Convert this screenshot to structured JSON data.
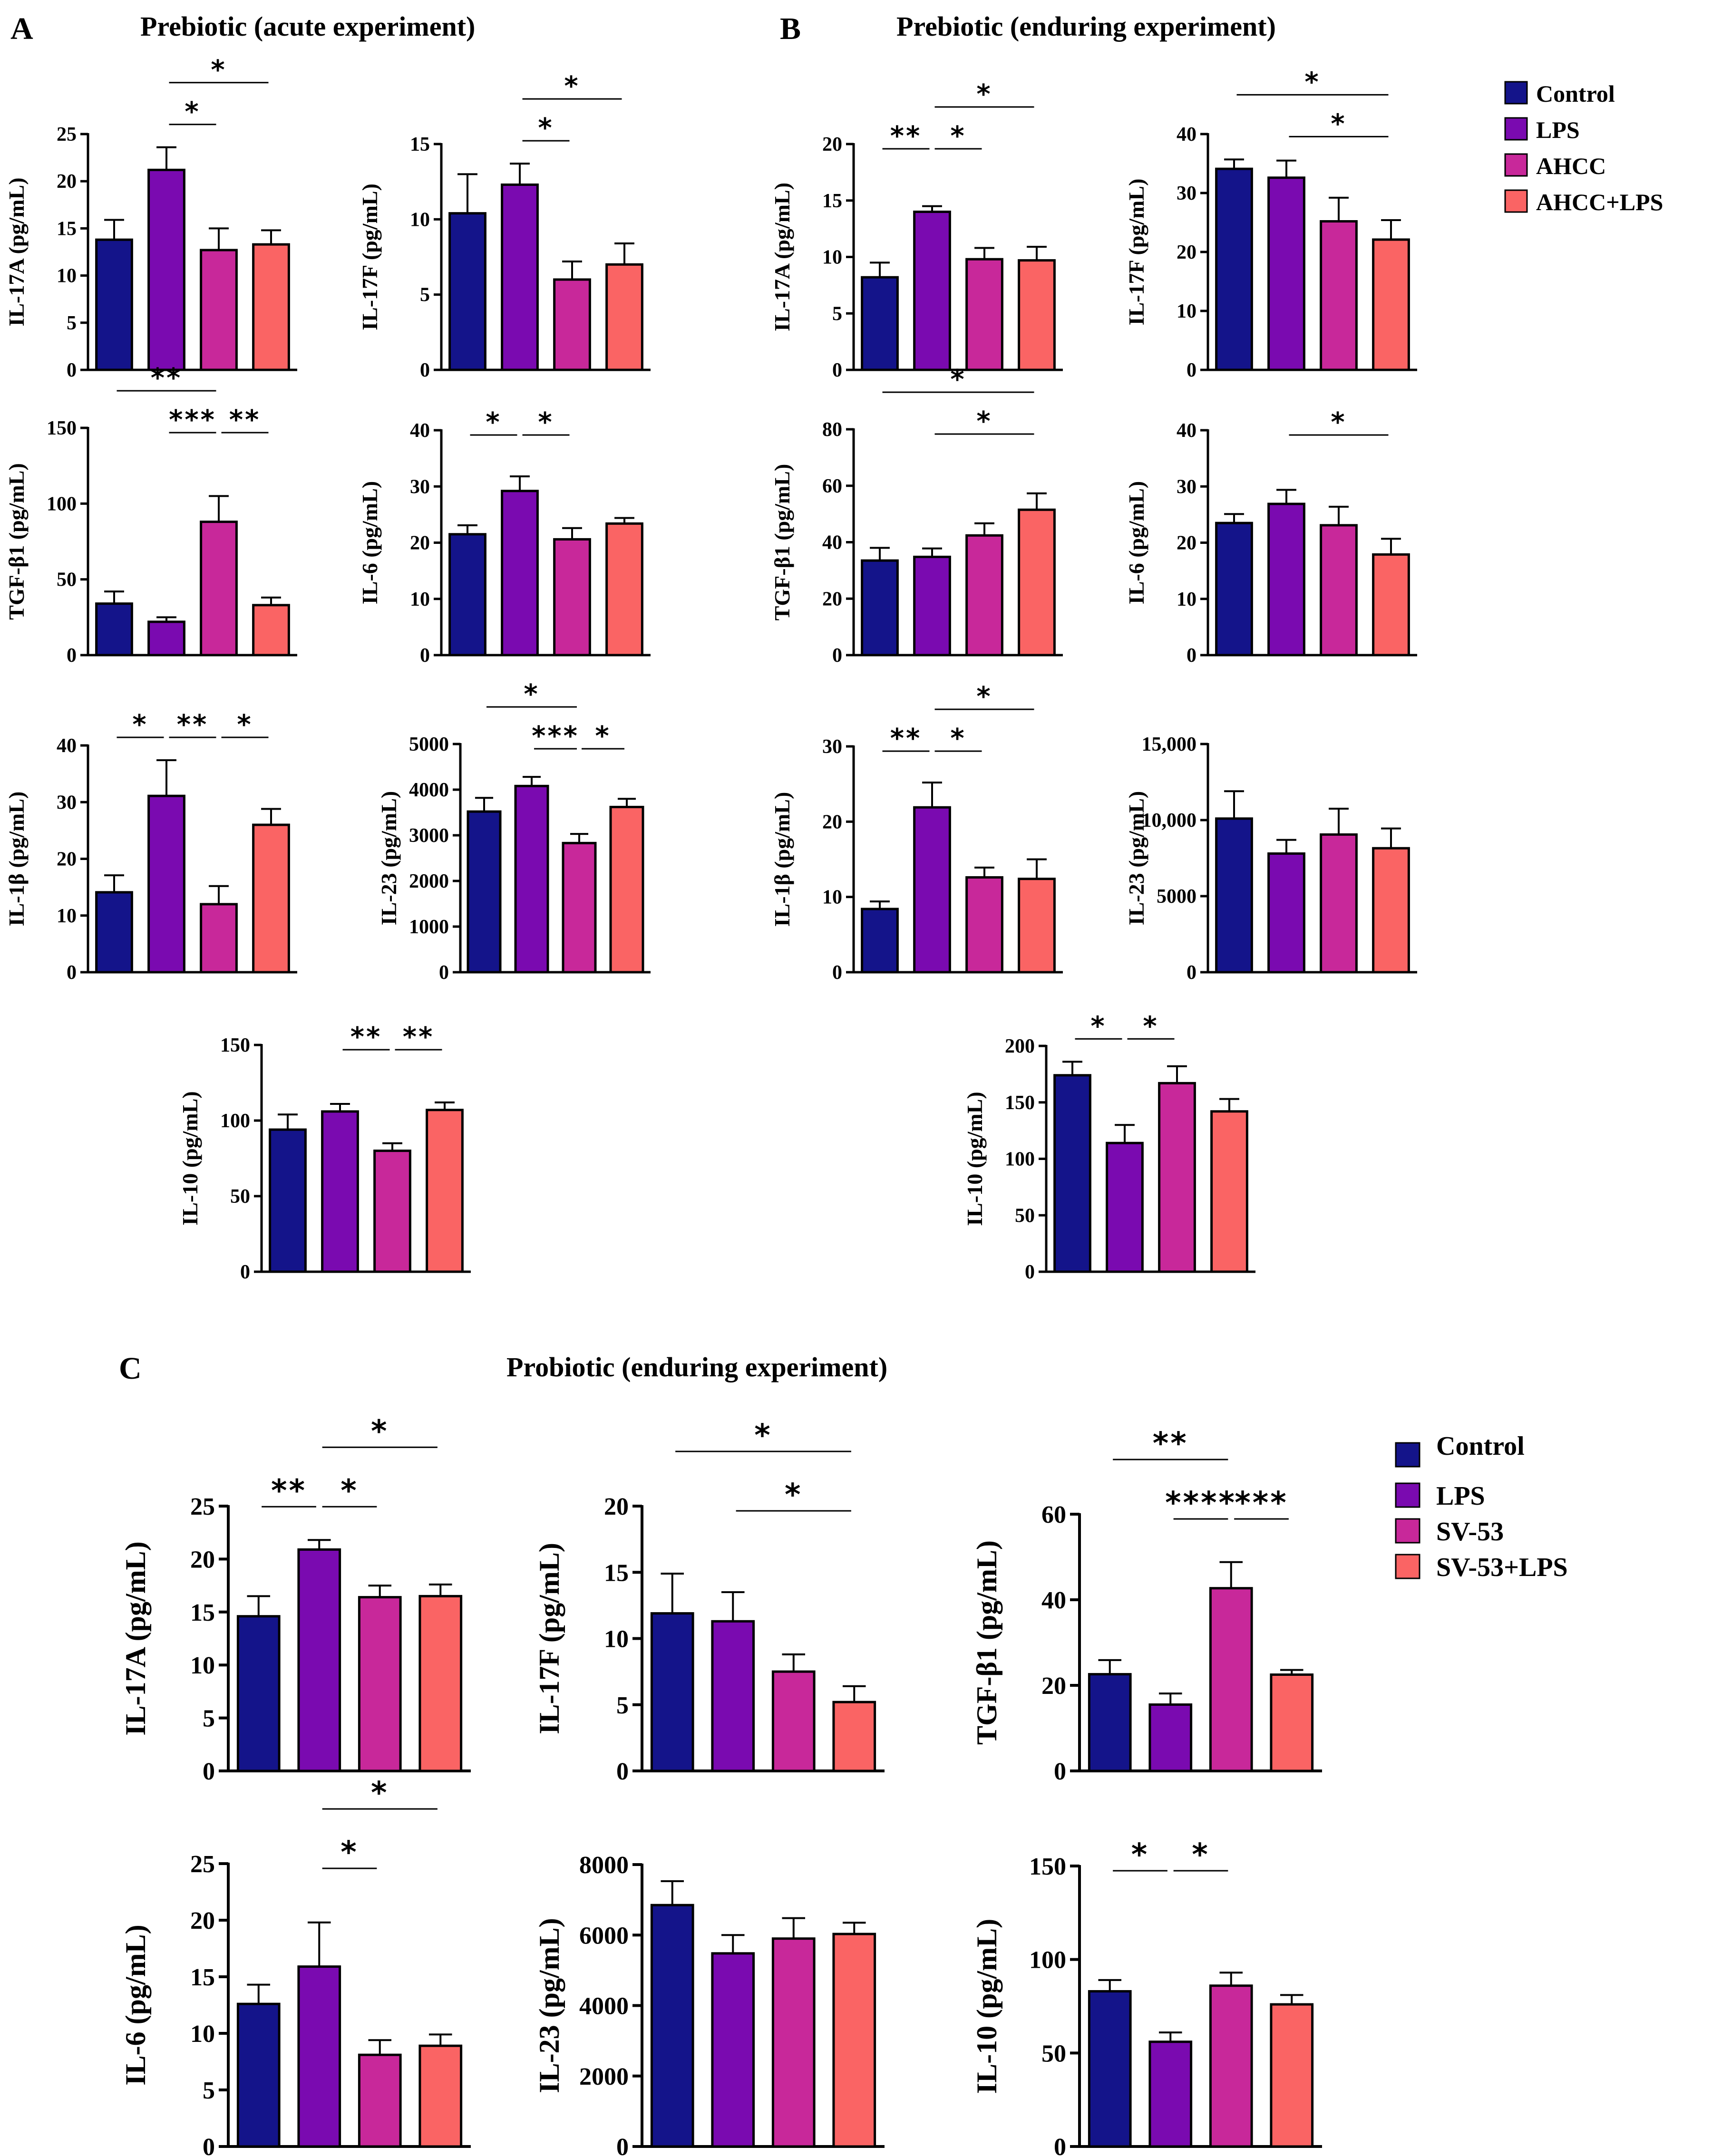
{
  "colors": {
    "series": [
      "#14148a",
      "#7a0ab0",
      "#c8289a",
      "#fa6464"
    ],
    "axis": "#000000"
  },
  "panels": {
    "A": {
      "letter": "A",
      "title": "Prebiotic (acute experiment)"
    },
    "B": {
      "letter": "B",
      "title": "Prebiotic (enduring experiment)"
    },
    "C": {
      "letter": "C",
      "title": "Probiotic (enduring experiment)"
    }
  },
  "legends": {
    "AB": [
      "Control",
      "LPS",
      "AHCC",
      "AHCC+LPS"
    ],
    "C": [
      "Control",
      "LPS",
      "SV-53",
      "SV-53+LPS"
    ]
  },
  "chart_data": [
    {
      "id": "A-IL17A",
      "panel": "A",
      "type": "bar",
      "categories": [
        "Control",
        "LPS",
        "AHCC",
        "AHCC+LPS"
      ],
      "ylabel": "IL-17A (pg/mL)",
      "ylim": [
        0,
        25
      ],
      "yticks": [
        "0",
        "5",
        "10",
        "15",
        "20",
        "25"
      ],
      "values": [
        13.8,
        21.2,
        12.7,
        13.3
      ],
      "errors": [
        2.1,
        2.4,
        2.3,
        1.5
      ],
      "sig": [
        {
          "from": 1,
          "to": 2,
          "label": "*"
        },
        {
          "from": 1,
          "to": 3,
          "label": "*"
        }
      ]
    },
    {
      "id": "A-IL17F",
      "panel": "A",
      "type": "bar",
      "categories": [
        "Control",
        "LPS",
        "AHCC",
        "AHCC+LPS"
      ],
      "ylabel": "IL-17F (pg/mL)",
      "ylim": [
        0,
        15
      ],
      "yticks": [
        "0",
        "5",
        "10",
        "15"
      ],
      "values": [
        10.4,
        12.3,
        6.0,
        7.0
      ],
      "errors": [
        2.6,
        1.4,
        1.2,
        1.4
      ],
      "sig": [
        {
          "from": 1,
          "to": 2,
          "label": "*"
        },
        {
          "from": 1,
          "to": 3,
          "label": "*"
        }
      ]
    },
    {
      "id": "A-TGF",
      "panel": "A",
      "type": "bar",
      "categories": [
        "Control",
        "LPS",
        "AHCC",
        "AHCC+LPS"
      ],
      "ylabel": "TGF-β1 (pg/mL)",
      "ylim": [
        0,
        150
      ],
      "yticks": [
        "0",
        "50",
        "100",
        "150"
      ],
      "values": [
        34,
        22,
        88,
        33
      ],
      "errors": [
        8,
        3,
        17,
        5
      ],
      "sig": [
        {
          "from": 1,
          "to": 2,
          "label": "***"
        },
        {
          "from": 0,
          "to": 2,
          "label": "**"
        },
        {
          "from": 2,
          "to": 3,
          "label": "**"
        }
      ]
    },
    {
      "id": "A-IL6",
      "panel": "A",
      "type": "bar",
      "categories": [
        "Control",
        "LPS",
        "AHCC",
        "AHCC+LPS"
      ],
      "ylabel": "IL-6 (pg/mL)",
      "ylim": [
        0,
        40
      ],
      "yticks": [
        "0",
        "10",
        "20",
        "30",
        "40"
      ],
      "values": [
        21.5,
        29.2,
        20.6,
        23.4
      ],
      "errors": [
        1.6,
        2.6,
        2.0,
        1.0
      ],
      "sig": [
        {
          "from": 0,
          "to": 1,
          "label": "*"
        },
        {
          "from": 1,
          "to": 2,
          "label": "*"
        }
      ]
    },
    {
      "id": "A-IL1B",
      "panel": "A",
      "type": "bar",
      "categories": [
        "Control",
        "LPS",
        "AHCC",
        "AHCC+LPS"
      ],
      "ylabel": "IL-1β (pg/mL)",
      "ylim": [
        0,
        40
      ],
      "yticks": [
        "0",
        "10",
        "20",
        "30",
        "40"
      ],
      "values": [
        14.1,
        31.1,
        12.0,
        26.0
      ],
      "errors": [
        3.0,
        6.3,
        3.2,
        2.8
      ],
      "sig": [
        {
          "from": 0,
          "to": 1,
          "label": "*"
        },
        {
          "from": 1,
          "to": 2,
          "label": "**"
        },
        {
          "from": 2,
          "to": 3,
          "label": "*"
        }
      ]
    },
    {
      "id": "A-IL23",
      "panel": "A",
      "type": "bar",
      "categories": [
        "Control",
        "LPS",
        "AHCC",
        "AHCC+LPS"
      ],
      "ylabel": "IL-23 (pg/mL)",
      "ylim": [
        0,
        5000
      ],
      "yticks": [
        "0",
        "1000",
        "2000",
        "3000",
        "4000",
        "5000"
      ],
      "values": [
        3520,
        4080,
        2830,
        3620
      ],
      "errors": [
        300,
        200,
        200,
        180
      ],
      "sig": [
        {
          "from": 1,
          "to": 2,
          "label": "***"
        },
        {
          "from": 0,
          "to": 2,
          "label": "*"
        },
        {
          "from": 2,
          "to": 3,
          "label": "*"
        }
      ]
    },
    {
      "id": "A-IL10",
      "panel": "A",
      "type": "bar",
      "categories": [
        "Control",
        "LPS",
        "AHCC",
        "AHCC+LPS"
      ],
      "ylabel": "IL-10 (pg/mL)",
      "ylim": [
        0,
        150
      ],
      "yticks": [
        "0",
        "50",
        "100",
        "150"
      ],
      "values": [
        94,
        106,
        80,
        107
      ],
      "errors": [
        10,
        5,
        5,
        5
      ],
      "sig": [
        {
          "from": 1,
          "to": 2,
          "label": "**"
        },
        {
          "from": 2,
          "to": 3,
          "label": "**"
        }
      ]
    },
    {
      "id": "B-IL17A",
      "panel": "B",
      "type": "bar",
      "categories": [
        "Control",
        "LPS",
        "AHCC",
        "AHCC+LPS"
      ],
      "ylabel": "IL-17A (pg/mL)",
      "ylim": [
        0,
        20
      ],
      "yticks": [
        "0",
        "5",
        "10",
        "15",
        "20"
      ],
      "values": [
        8.2,
        14.0,
        9.8,
        9.7
      ],
      "errors": [
        1.3,
        0.5,
        1.0,
        1.2
      ],
      "sig": [
        {
          "from": 0,
          "to": 1,
          "label": "**"
        },
        {
          "from": 1,
          "to": 2,
          "label": "*"
        },
        {
          "from": 1,
          "to": 3,
          "label": "*"
        }
      ]
    },
    {
      "id": "B-IL17F",
      "panel": "B",
      "type": "bar",
      "categories": [
        "Control",
        "LPS",
        "AHCC",
        "AHCC+LPS"
      ],
      "ylabel": "IL-17F (pg/mL)",
      "ylim": [
        0,
        40
      ],
      "yticks": [
        "0",
        "10",
        "20",
        "30",
        "40"
      ],
      "values": [
        34.1,
        32.6,
        25.2,
        22.1
      ],
      "errors": [
        1.6,
        2.9,
        4.0,
        3.3
      ],
      "sig": [
        {
          "from": 1,
          "to": 3,
          "label": "*"
        },
        {
          "from": 0,
          "to": 3,
          "label": "*"
        }
      ]
    },
    {
      "id": "B-TGF",
      "panel": "B",
      "type": "bar",
      "categories": [
        "Control",
        "LPS",
        "AHCC",
        "AHCC+LPS"
      ],
      "ylabel": "TGF-β1 (pg/mL)",
      "ylim": [
        0,
        80
      ],
      "yticks": [
        "0",
        "20",
        "40",
        "60",
        "80"
      ],
      "values": [
        33.5,
        34.8,
        42.4,
        51.5
      ],
      "errors": [
        4.5,
        3.0,
        4.3,
        5.8
      ],
      "sig": [
        {
          "from": 1,
          "to": 3,
          "label": "*"
        },
        {
          "from": 0,
          "to": 3,
          "label": "*"
        }
      ]
    },
    {
      "id": "B-IL6",
      "panel": "B",
      "type": "bar",
      "categories": [
        "Control",
        "LPS",
        "AHCC",
        "AHCC+LPS"
      ],
      "ylabel": "IL-6 (pg/mL)",
      "ylim": [
        0,
        40
      ],
      "yticks": [
        "0",
        "10",
        "20",
        "30",
        "40"
      ],
      "values": [
        23.5,
        26.9,
        23.1,
        17.9
      ],
      "errors": [
        1.6,
        2.5,
        3.3,
        2.8
      ],
      "sig": [
        {
          "from": 1,
          "to": 3,
          "label": "*"
        }
      ]
    },
    {
      "id": "B-IL1B",
      "panel": "B",
      "type": "bar",
      "categories": [
        "Control",
        "LPS",
        "AHCC",
        "AHCC+LPS"
      ],
      "ylabel": "IL-1β (pg/mL)",
      "ylim": [
        0,
        30
      ],
      "yticks": [
        "0",
        "10",
        "20",
        "30"
      ],
      "values": [
        8.4,
        21.9,
        12.6,
        12.4
      ],
      "errors": [
        1.0,
        3.3,
        1.3,
        2.6
      ],
      "sig": [
        {
          "from": 0,
          "to": 1,
          "label": "**"
        },
        {
          "from": 1,
          "to": 2,
          "label": "*"
        },
        {
          "from": 1,
          "to": 3,
          "label": "*"
        }
      ]
    },
    {
      "id": "B-IL23",
      "panel": "B",
      "type": "bar",
      "categories": [
        "Control",
        "LPS",
        "AHCC",
        "AHCC+LPS"
      ],
      "ylabel": "IL-23 (pg/mL)",
      "ylim": [
        0,
        15000
      ],
      "yticks": [
        "0",
        "5000",
        "10,000",
        "15,000"
      ],
      "values": [
        10100,
        7800,
        9050,
        8150
      ],
      "errors": [
        1800,
        900,
        1700,
        1300
      ],
      "sig": []
    },
    {
      "id": "B-IL10",
      "panel": "B",
      "type": "bar",
      "categories": [
        "Control",
        "LPS",
        "AHCC",
        "AHCC+LPS"
      ],
      "ylabel": "IL-10 (pg/mL)",
      "ylim": [
        0,
        200
      ],
      "yticks": [
        "0",
        "50",
        "100",
        "150",
        "200"
      ],
      "values": [
        174,
        114,
        167,
        142
      ],
      "errors": [
        12,
        16,
        15,
        11
      ],
      "sig": [
        {
          "from": 0,
          "to": 1,
          "label": "*"
        },
        {
          "from": 1,
          "to": 2,
          "label": "*"
        }
      ]
    },
    {
      "id": "C-IL17A",
      "panel": "C",
      "type": "bar",
      "categories": [
        "Control",
        "LPS",
        "SV-53",
        "SV-53+LPS"
      ],
      "ylabel": "IL-17A (pg/mL)",
      "ylim": [
        0,
        25
      ],
      "yticks": [
        "0",
        "5",
        "10",
        "15",
        "20",
        "25"
      ],
      "values": [
        14.6,
        20.9,
        16.4,
        16.5
      ],
      "errors": [
        1.9,
        0.9,
        1.1,
        1.1
      ],
      "sig": [
        {
          "from": 0,
          "to": 1,
          "label": "**"
        },
        {
          "from": 1,
          "to": 2,
          "label": "*"
        },
        {
          "from": 1,
          "to": 3,
          "label": "*"
        }
      ]
    },
    {
      "id": "C-IL17F",
      "panel": "C",
      "type": "bar",
      "categories": [
        "Control",
        "LPS",
        "SV-53",
        "SV-53+LPS"
      ],
      "ylabel": "IL-17F (pg/mL)",
      "ylim": [
        0,
        20
      ],
      "yticks": [
        "0",
        "5",
        "10",
        "15",
        "20"
      ],
      "values": [
        11.9,
        11.3,
        7.5,
        5.2
      ],
      "errors": [
        3.0,
        2.2,
        1.3,
        1.2
      ],
      "sig": [
        {
          "from": 1,
          "to": 3,
          "label": "*"
        },
        {
          "from": 0,
          "to": 3,
          "label": "*"
        }
      ]
    },
    {
      "id": "C-TGF",
      "panel": "C",
      "type": "bar",
      "categories": [
        "Control",
        "LPS",
        "SV-53",
        "SV-53+LPS"
      ],
      "ylabel": "TGF-β1 (pg/mL)",
      "ylim": [
        0,
        60
      ],
      "yticks": [
        "0",
        "20",
        "40",
        "60"
      ],
      "values": [
        22.6,
        15.5,
        42.7,
        22.5
      ],
      "errors": [
        3.3,
        2.6,
        6.1,
        1.1
      ],
      "sig": [
        {
          "from": 0,
          "to": 2,
          "label": "**"
        },
        {
          "from": 1,
          "to": 2,
          "label": "****"
        },
        {
          "from": 2,
          "to": 3,
          "label": "***"
        }
      ]
    },
    {
      "id": "C-IL6",
      "panel": "C",
      "type": "bar",
      "categories": [
        "Control",
        "LPS",
        "SV-53",
        "SV-53+LPS"
      ],
      "ylabel": "IL-6 (pg/mL)",
      "ylim": [
        0,
        25
      ],
      "yticks": [
        "0",
        "5",
        "10",
        "15",
        "20",
        "25"
      ],
      "values": [
        12.6,
        15.9,
        8.1,
        8.9
      ],
      "errors": [
        1.7,
        3.9,
        1.3,
        1.0
      ],
      "sig": [
        {
          "from": 1,
          "to": 2,
          "label": "*"
        },
        {
          "from": 1,
          "to": 3,
          "label": "*"
        }
      ]
    },
    {
      "id": "C-IL23",
      "panel": "C",
      "type": "bar",
      "categories": [
        "Control",
        "LPS",
        "SV-53",
        "SV-53+LPS"
      ],
      "ylabel": "IL-23 (pg/mL)",
      "ylim": [
        0,
        8000
      ],
      "yticks": [
        "0",
        "2000",
        "4000",
        "6000",
        "8000"
      ],
      "values": [
        6850,
        5480,
        5900,
        6030
      ],
      "errors": [
        680,
        520,
        580,
        320
      ],
      "sig": []
    },
    {
      "id": "C-IL10",
      "panel": "C",
      "type": "bar",
      "categories": [
        "Control",
        "LPS",
        "SV-53",
        "SV-53+LPS"
      ],
      "ylabel": "IL-10 (pg/mL)",
      "ylim": [
        0,
        150
      ],
      "yticks": [
        "0",
        "50",
        "100",
        "150"
      ],
      "values": [
        83,
        56,
        86,
        76
      ],
      "errors": [
        6,
        5,
        7,
        5
      ],
      "sig": [
        {
          "from": 0,
          "to": 1,
          "label": "*"
        },
        {
          "from": 1,
          "to": 2,
          "label": "*"
        }
      ]
    }
  ]
}
